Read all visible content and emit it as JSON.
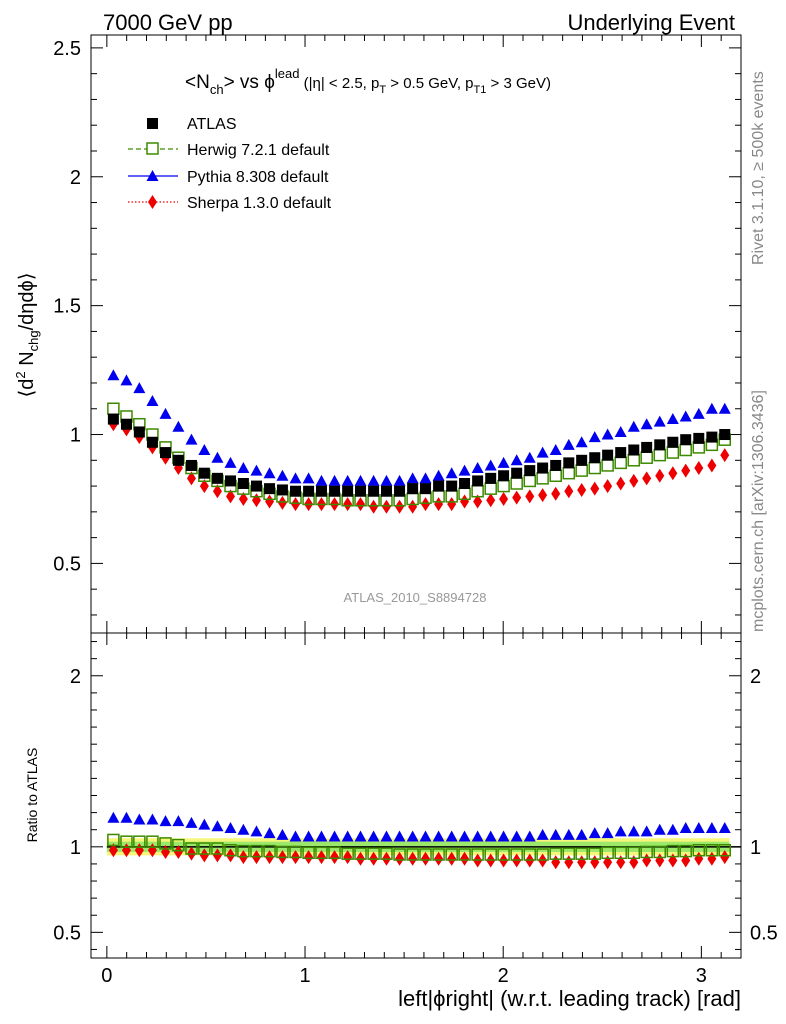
{
  "header": {
    "left": "7000 GeV pp",
    "right": "Underlying Event"
  },
  "side_labels": {
    "rivet": "Rivet 3.1.10, ≥ 500k events",
    "mcplots": "mcplots.cern.ch [arXiv:1306.3436]"
  },
  "colors": {
    "atlas": "#000000",
    "herwig": "#3d8a00",
    "pythia": "#0000ee",
    "sherpa": "#ee0000",
    "band_outer": "#f6f67a",
    "band_inner": "#9be86a"
  },
  "chart_data": [
    {
      "type": "scatter",
      "panel": "main",
      "title": {
        "pre": "<N",
        "sub1": "ch",
        "mid": "> vs ϕ",
        "sup1": "lead",
        "cond1": " (|η| < 2.5, p",
        "sub2": "T",
        "cond2": " > 0.5 GeV, p",
        "sub3": "T1",
        "cond3": " > 3 GeV)"
      },
      "ylabel": {
        "pre": "⟨d",
        "sup": "2",
        "mid": " N",
        "sub": "chg",
        "post": "/dηdϕ⟩"
      },
      "ylim": [
        0.23,
        2.55
      ],
      "xlim": [
        -0.08,
        3.2
      ],
      "yticks": [
        {
          "v": 0.5,
          "label": "0.5"
        },
        {
          "v": 1,
          "label": "1"
        },
        {
          "v": 1.5,
          "label": "1.5"
        },
        {
          "v": 2,
          "label": "2"
        },
        {
          "v": 2.5,
          "label": "2.5"
        }
      ],
      "watermark": "ATLAS_2010_S8894728",
      "legend": [
        {
          "key": "atlas",
          "label": "ATLAS"
        },
        {
          "key": "herwig",
          "label": "Herwig 7.2.1 default"
        },
        {
          "key": "pythia",
          "label": "Pythia 8.308 default"
        },
        {
          "key": "sherpa",
          "label": "Sherpa 1.3.0 default"
        }
      ],
      "x": [
        0.033,
        0.099,
        0.164,
        0.23,
        0.296,
        0.361,
        0.427,
        0.492,
        0.558,
        0.624,
        0.689,
        0.755,
        0.821,
        0.886,
        0.952,
        1.018,
        1.083,
        1.149,
        1.215,
        1.28,
        1.346,
        1.411,
        1.477,
        1.543,
        1.608,
        1.674,
        1.74,
        1.805,
        1.871,
        1.937,
        2.002,
        2.068,
        2.134,
        2.199,
        2.265,
        2.331,
        2.396,
        2.462,
        2.527,
        2.593,
        2.659,
        2.724,
        2.79,
        2.856,
        2.921,
        2.987,
        3.053,
        3.118
      ],
      "series": [
        {
          "key": "atlas",
          "name": "ATLAS",
          "values": [
            1.06,
            1.04,
            1.01,
            0.97,
            0.93,
            0.9,
            0.88,
            0.85,
            0.83,
            0.82,
            0.81,
            0.8,
            0.79,
            0.785,
            0.78,
            0.78,
            0.78,
            0.78,
            0.78,
            0.78,
            0.78,
            0.78,
            0.78,
            0.79,
            0.79,
            0.8,
            0.8,
            0.81,
            0.82,
            0.83,
            0.84,
            0.85,
            0.86,
            0.87,
            0.88,
            0.89,
            0.9,
            0.91,
            0.92,
            0.93,
            0.94,
            0.95,
            0.96,
            0.97,
            0.98,
            0.985,
            0.99,
            1.0
          ]
        },
        {
          "key": "herwig",
          "name": "Herwig 7.2.1 default",
          "values": [
            1.1,
            1.07,
            1.04,
            1.0,
            0.95,
            0.91,
            0.87,
            0.84,
            0.82,
            0.8,
            0.79,
            0.78,
            0.77,
            0.76,
            0.755,
            0.75,
            0.75,
            0.75,
            0.745,
            0.745,
            0.745,
            0.745,
            0.745,
            0.75,
            0.755,
            0.76,
            0.76,
            0.77,
            0.78,
            0.79,
            0.8,
            0.81,
            0.82,
            0.83,
            0.84,
            0.85,
            0.86,
            0.87,
            0.88,
            0.89,
            0.9,
            0.91,
            0.92,
            0.93,
            0.94,
            0.95,
            0.96,
            0.98
          ]
        },
        {
          "key": "pythia",
          "name": "Pythia 8.308 default",
          "values": [
            1.23,
            1.21,
            1.18,
            1.13,
            1.08,
            1.03,
            0.98,
            0.94,
            0.91,
            0.89,
            0.87,
            0.86,
            0.85,
            0.84,
            0.83,
            0.83,
            0.82,
            0.82,
            0.82,
            0.82,
            0.82,
            0.82,
            0.82,
            0.83,
            0.83,
            0.84,
            0.85,
            0.86,
            0.87,
            0.88,
            0.89,
            0.9,
            0.91,
            0.93,
            0.94,
            0.96,
            0.97,
            0.99,
            1.0,
            1.01,
            1.03,
            1.04,
            1.05,
            1.06,
            1.07,
            1.08,
            1.1,
            1.1
          ]
        },
        {
          "key": "sherpa",
          "name": "Sherpa 1.3.0 default",
          "values": [
            1.04,
            1.02,
            0.99,
            0.95,
            0.91,
            0.87,
            0.83,
            0.8,
            0.78,
            0.76,
            0.75,
            0.745,
            0.74,
            0.735,
            0.73,
            0.73,
            0.73,
            0.73,
            0.73,
            0.73,
            0.72,
            0.72,
            0.72,
            0.72,
            0.73,
            0.73,
            0.73,
            0.74,
            0.74,
            0.745,
            0.75,
            0.755,
            0.76,
            0.765,
            0.77,
            0.78,
            0.785,
            0.79,
            0.8,
            0.81,
            0.82,
            0.83,
            0.84,
            0.85,
            0.86,
            0.87,
            0.88,
            0.92
          ]
        }
      ]
    },
    {
      "type": "scatter",
      "panel": "ratio",
      "ylabel": "Ratio to ATLAS",
      "xlabel": "left|ϕright| (w.r.t. leading track) [rad]",
      "ylim": [
        0.35,
        2.25
      ],
      "xlim": [
        -0.08,
        3.2
      ],
      "xticks": [
        {
          "v": 0,
          "label": "0"
        },
        {
          "v": 1,
          "label": "1"
        },
        {
          "v": 2,
          "label": "2"
        },
        {
          "v": 3,
          "label": "3"
        }
      ],
      "yticks": [
        {
          "v": 0.5,
          "label": "0.5"
        },
        {
          "v": 1,
          "label": "1"
        },
        {
          "v": 2,
          "label": "2"
        }
      ],
      "reference_line": 1,
      "band": {
        "outer": [
          0.95,
          1.05
        ],
        "inner": [
          0.97,
          1.03
        ]
      },
      "series": [
        {
          "key": "herwig",
          "name": "Herwig 7.2.1 default",
          "values": [
            1.04,
            1.03,
            1.03,
            1.03,
            1.02,
            1.01,
            0.99,
            0.99,
            0.99,
            0.98,
            0.975,
            0.975,
            0.975,
            0.97,
            0.97,
            0.965,
            0.965,
            0.965,
            0.96,
            0.96,
            0.96,
            0.96,
            0.955,
            0.955,
            0.955,
            0.955,
            0.955,
            0.955,
            0.955,
            0.955,
            0.955,
            0.955,
            0.955,
            0.955,
            0.96,
            0.96,
            0.96,
            0.96,
            0.965,
            0.965,
            0.965,
            0.97,
            0.97,
            0.975,
            0.975,
            0.98,
            0.98,
            0.98
          ]
        },
        {
          "key": "pythia",
          "name": "Pythia 8.308 default",
          "values": [
            1.17,
            1.17,
            1.16,
            1.16,
            1.15,
            1.15,
            1.14,
            1.13,
            1.12,
            1.11,
            1.1,
            1.09,
            1.08,
            1.07,
            1.06,
            1.06,
            1.06,
            1.06,
            1.06,
            1.06,
            1.06,
            1.06,
            1.06,
            1.06,
            1.06,
            1.06,
            1.06,
            1.06,
            1.06,
            1.06,
            1.06,
            1.06,
            1.06,
            1.07,
            1.07,
            1.07,
            1.07,
            1.08,
            1.08,
            1.09,
            1.09,
            1.09,
            1.1,
            1.1,
            1.11,
            1.11,
            1.11,
            1.11
          ]
        },
        {
          "key": "sherpa",
          "name": "Sherpa 1.3.0 default",
          "values": [
            0.98,
            0.98,
            0.98,
            0.98,
            0.97,
            0.97,
            0.96,
            0.95,
            0.95,
            0.95,
            0.94,
            0.94,
            0.94,
            0.94,
            0.94,
            0.94,
            0.94,
            0.94,
            0.94,
            0.93,
            0.93,
            0.93,
            0.93,
            0.93,
            0.93,
            0.93,
            0.93,
            0.93,
            0.92,
            0.92,
            0.92,
            0.92,
            0.92,
            0.92,
            0.91,
            0.91,
            0.91,
            0.91,
            0.91,
            0.91,
            0.91,
            0.92,
            0.92,
            0.92,
            0.92,
            0.93,
            0.93,
            0.94
          ]
        }
      ]
    }
  ]
}
